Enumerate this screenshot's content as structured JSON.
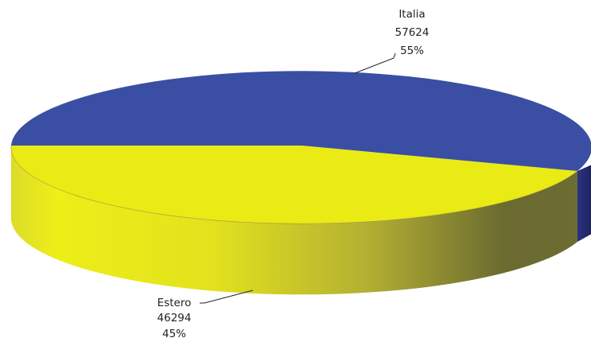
{
  "chart_data": {
    "type": "pie",
    "style": "3d",
    "slices": [
      {
        "label": "Italia",
        "value": 57624,
        "percent": "55%",
        "color": "#3a4fa3"
      },
      {
        "label": "Estero",
        "value": 46294,
        "percent": "45%",
        "color": "#eaea14"
      }
    ]
  }
}
